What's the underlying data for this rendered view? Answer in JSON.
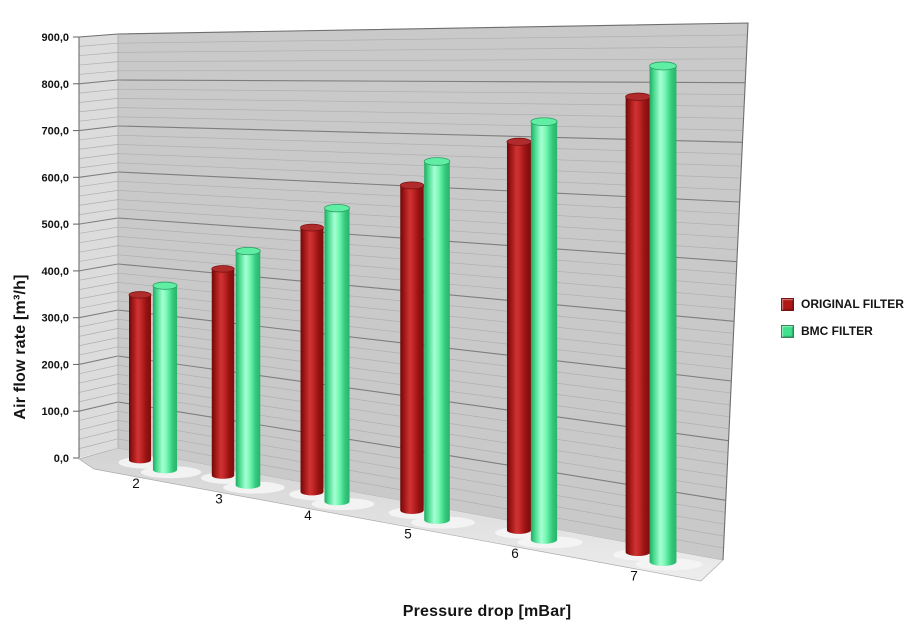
{
  "chart_data": {
    "type": "bar",
    "style": "3d-cylinder",
    "xlabel": "Pressure drop [mBar]",
    "ylabel": "Air flow rate [m³/h]",
    "categories": [
      "2",
      "3",
      "4",
      "5",
      "6",
      "7"
    ],
    "series": [
      {
        "name": "ORIGINAL FILTER",
        "color": "#B01717",
        "values": [
          350,
          420,
          515,
          605,
          690,
          770
        ]
      },
      {
        "name": "BMC FILTER",
        "color": "#3FE18D",
        "values": [
          385,
          470,
          565,
          660,
          735,
          830
        ]
      }
    ],
    "ylim": [
      0,
      900
    ],
    "ytick_step": 100,
    "y_tick_labels": [
      "0,0",
      "100,0",
      "200,0",
      "300,0",
      "400,0",
      "500,0",
      "600,0",
      "700,0",
      "800,0",
      "900,0"
    ],
    "minor_tick_unit": 20,
    "grid": true,
    "legend_position": "right",
    "colors": {
      "background": "#FFFFFF",
      "back_wall": "#C9C9C9",
      "side_wall": "#DCDCDC",
      "floor_back": "#D2D2D2",
      "floor_front": "#EDEDED",
      "major_grid": "#7E7E7E",
      "minor_grid": "#AFAFAF",
      "outline": "#6E6E6E"
    }
  }
}
